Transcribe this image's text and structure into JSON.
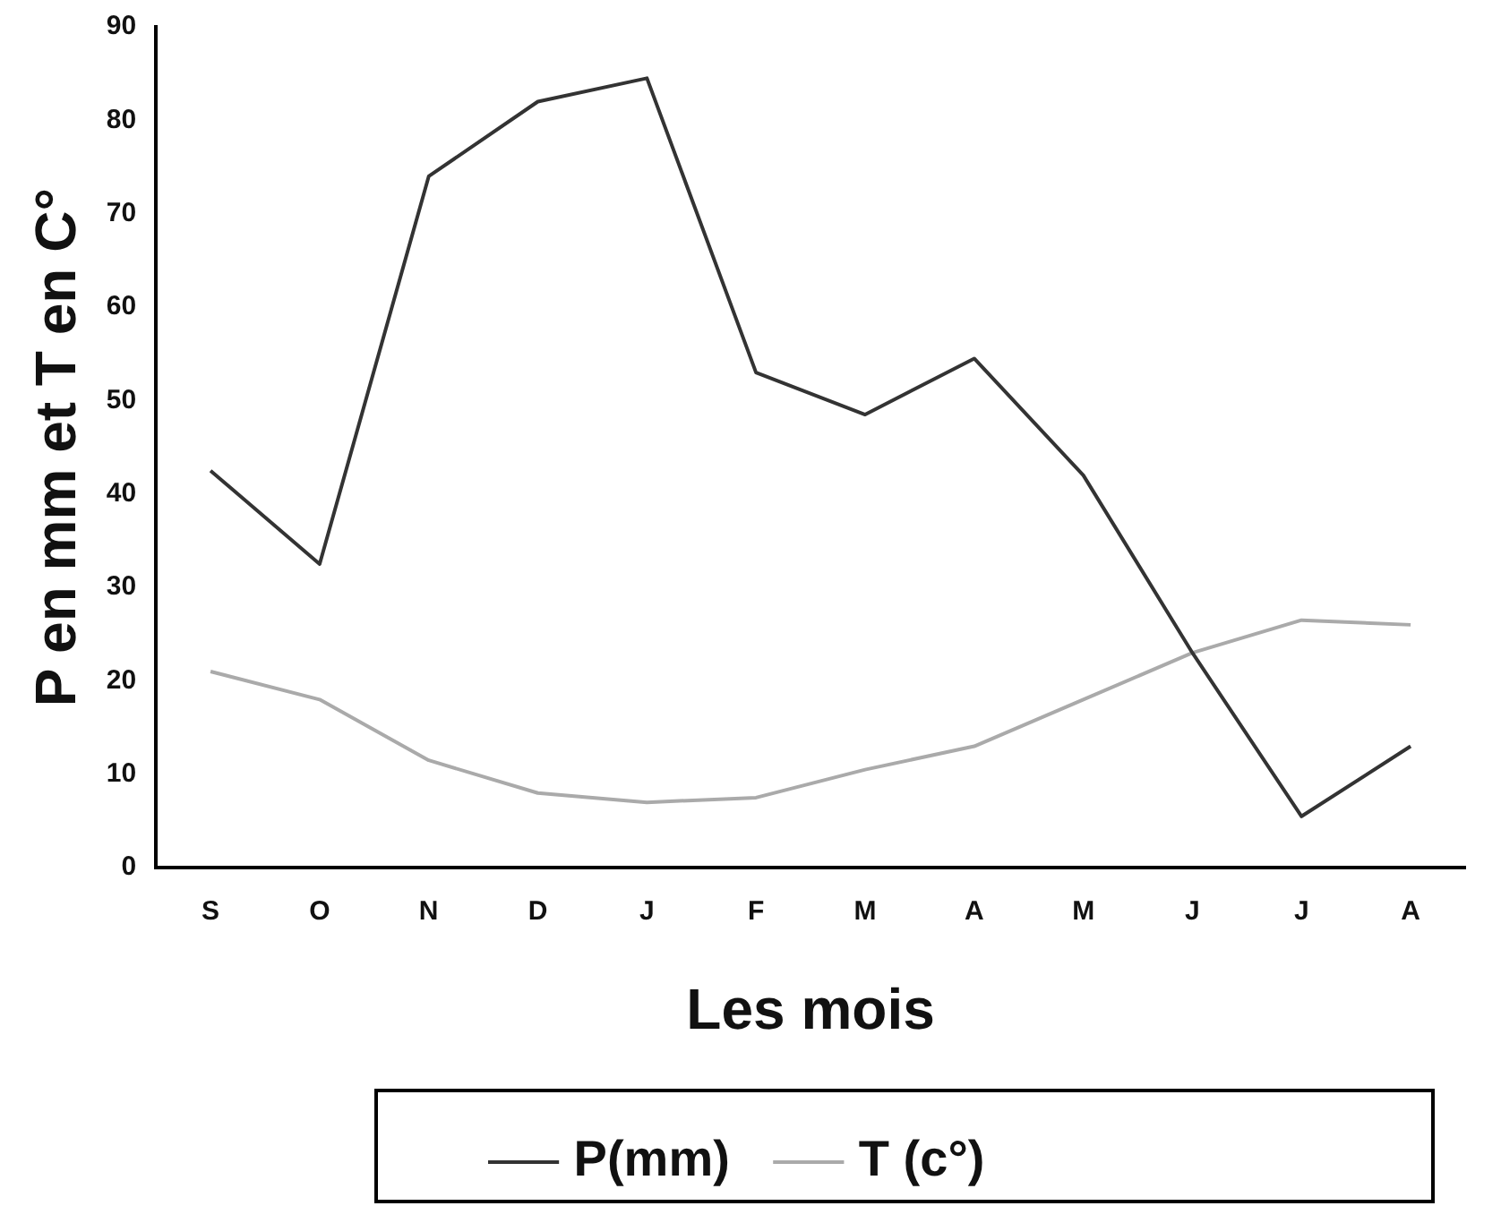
{
  "chart_data": {
    "type": "line",
    "xlabel": "Les mois",
    "ylabel": "P en mm et T en C°",
    "categories": [
      "S",
      "O",
      "N",
      "D",
      "J",
      "F",
      "M",
      "A",
      "M",
      "J",
      "J",
      "A"
    ],
    "series": [
      {
        "name": "P(mm)",
        "color": "#333333",
        "values": [
          42.5,
          32.5,
          74,
          82,
          84.5,
          53,
          48.5,
          54.5,
          42,
          23,
          5.5,
          13
        ]
      },
      {
        "name": "T (c°)",
        "color": "#aaaaaa",
        "values": [
          21,
          18,
          11.5,
          8,
          7,
          7.5,
          10.5,
          13,
          18,
          23,
          26.5,
          26
        ]
      }
    ],
    "ylim": [
      0,
      90
    ],
    "yticks": [
      0,
      10,
      20,
      30,
      40,
      50,
      60,
      70,
      80,
      90
    ],
    "grid": false,
    "legend": "bottom",
    "marker": "none",
    "line_style": "solid"
  }
}
